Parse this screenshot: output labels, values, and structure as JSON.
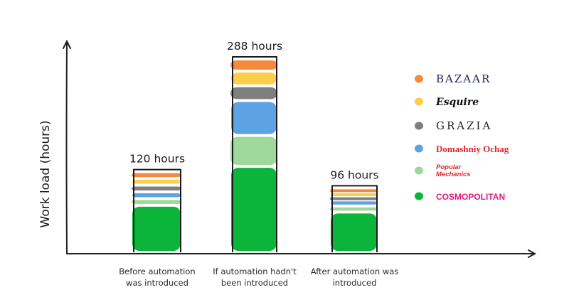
{
  "chart_data": {
    "type": "bar",
    "stacked": true,
    "ylabel": "Work load (hours)",
    "xlabel": "",
    "categories": [
      [
        "Before automation",
        "was introduced"
      ],
      [
        "If automation hadn't",
        "been introduced"
      ],
      [
        "After automation was",
        "introduced"
      ]
    ],
    "totals": [
      120,
      288,
      96
    ],
    "total_labels": [
      "120 hours",
      "288 hours",
      "96 hours"
    ],
    "series": [
      {
        "name": "BAZAAR",
        "color": "#f58a3c",
        "values": [
          10,
          18,
          6
        ]
      },
      {
        "name": "Esquire",
        "color": "#fcce4b",
        "values": [
          10,
          22,
          6
        ]
      },
      {
        "name": "GRAZIA",
        "color": "#7f7f7f",
        "values": [
          10,
          22,
          6
        ]
      },
      {
        "name": "Domashniy Ochag",
        "color": "#5fa2e3",
        "values": [
          10,
          52,
          9
        ]
      },
      {
        "name": "Popular Mechanics",
        "color": "#9ed89a",
        "values": [
          10,
          46,
          9
        ]
      },
      {
        "name": "COSMOPOLITAN",
        "color": "#0ab53a",
        "values": [
          70,
          128,
          60
        ]
      }
    ],
    "legend_position": "right",
    "grid": false
  },
  "legend": [
    {
      "text": "BAZAAR",
      "icon": "bazaar-swatch",
      "style": "bazaar"
    },
    {
      "text": "Esquire",
      "icon": "esquire-swatch",
      "style": "esquire"
    },
    {
      "text": "GRAZIA",
      "icon": "grazia-swatch",
      "style": "grazia"
    },
    {
      "text": "Domashniy Ochag",
      "icon": "domashniy-swatch",
      "style": "domashniy"
    },
    {
      "text": "Popular Mechanics",
      "icon": "popular-mechanics-swatch",
      "style": "popular"
    },
    {
      "text": "COSMOPOLITAN",
      "icon": "cosmopolitan-swatch",
      "style": "cosmo"
    }
  ]
}
